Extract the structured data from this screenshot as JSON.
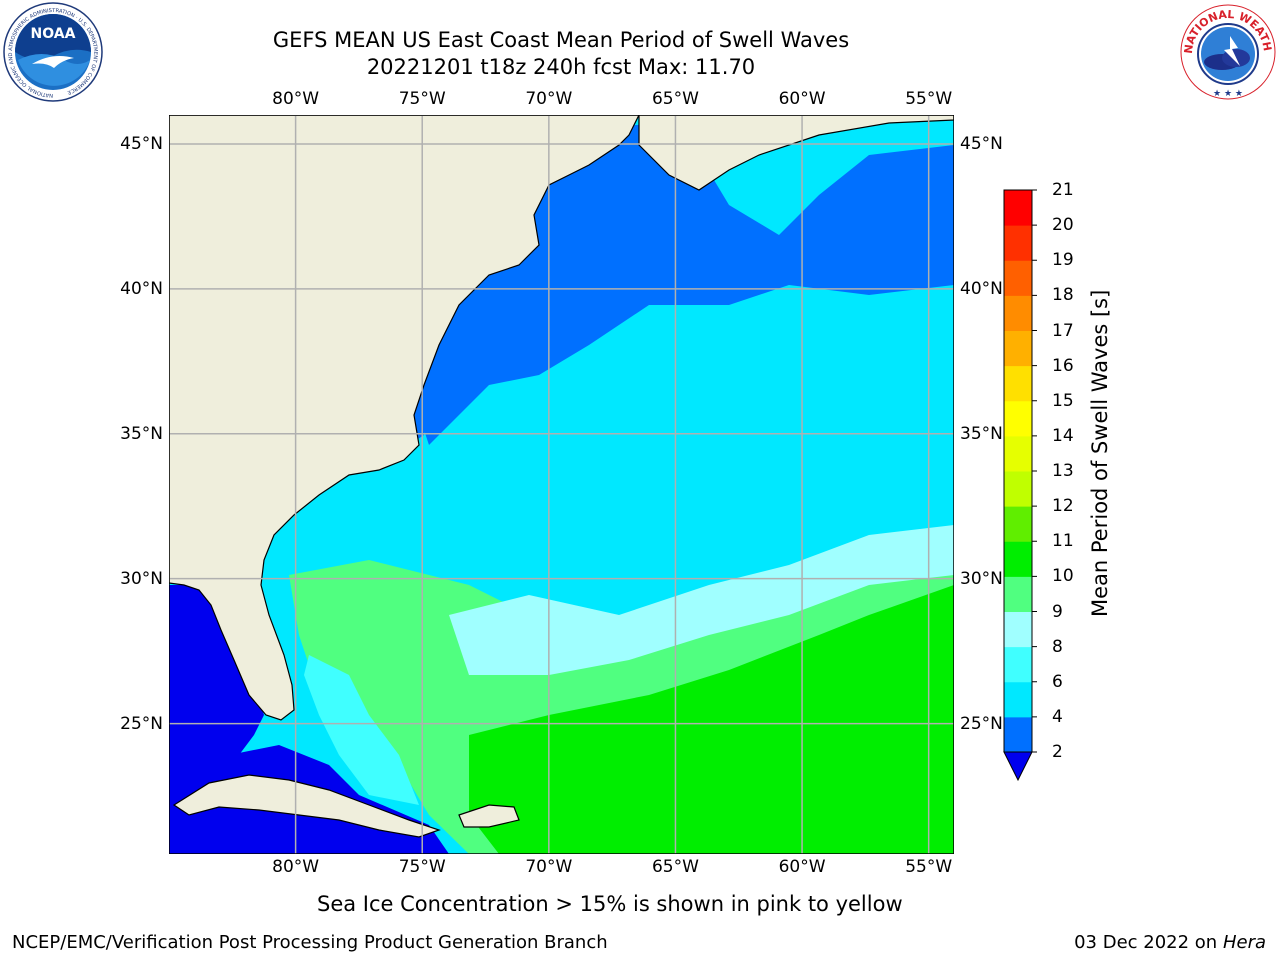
{
  "header": {
    "title_line1": "GEFS MEAN US East Coast Mean Period of Swell Waves",
    "title_line2": "20221201 t18z 240h fcst   Max: 11.70"
  },
  "logos": {
    "noaa": {
      "text": "NOAA",
      "ring_text": "NATIONAL OCEANIC AND ATMOSPHERIC ADMINISTRATION · U.S. DEPARTMENT OF COMMERCE"
    },
    "nws": {
      "ring_text": "NATIONAL WEATHER SERVICE"
    }
  },
  "map": {
    "lon_range": [
      -85,
      -54
    ],
    "lat_range": [
      20.5,
      46
    ],
    "lon_ticks": [
      {
        "value": -80,
        "label": "80°W"
      },
      {
        "value": -75,
        "label": "75°W"
      },
      {
        "value": -70,
        "label": "70°W"
      },
      {
        "value": -65,
        "label": "65°W"
      },
      {
        "value": -60,
        "label": "60°W"
      },
      {
        "value": -55,
        "label": "55°W"
      }
    ],
    "lat_ticks": [
      {
        "value": 45,
        "label": "45°N"
      },
      {
        "value": 40,
        "label": "40°N"
      },
      {
        "value": 35,
        "label": "35°N"
      },
      {
        "value": 30,
        "label": "30°N"
      },
      {
        "value": 25,
        "label": "25°N"
      }
    ],
    "grid": true,
    "land_color": "#efeedc",
    "grid_color": "#b0b0b0"
  },
  "colorbar": {
    "label": "Mean Period of Swell Waves [s]",
    "levels": [
      2,
      4,
      6,
      8,
      9,
      10,
      11,
      12,
      13,
      14,
      15,
      16,
      17,
      18,
      19,
      20,
      21
    ],
    "colors": [
      "#0070ff",
      "#00e8ff",
      "#40ffff",
      "#a0ffff",
      "#50ff80",
      "#00ee00",
      "#60ee00",
      "#c0ff00",
      "#e6ff00",
      "#ffff00",
      "#ffe000",
      "#ffb000",
      "#ff8c00",
      "#ff6000",
      "#ff3000",
      "#ff0000"
    ],
    "under_color": "#0000ee"
  },
  "footer": {
    "note": "Sea Ice Concentration > 15% is shown in pink to yellow",
    "left": "NCEP/EMC/Verification Post Processing Product Generation Branch",
    "date": "03 Dec 2022 on",
    "machine": "Hera"
  }
}
